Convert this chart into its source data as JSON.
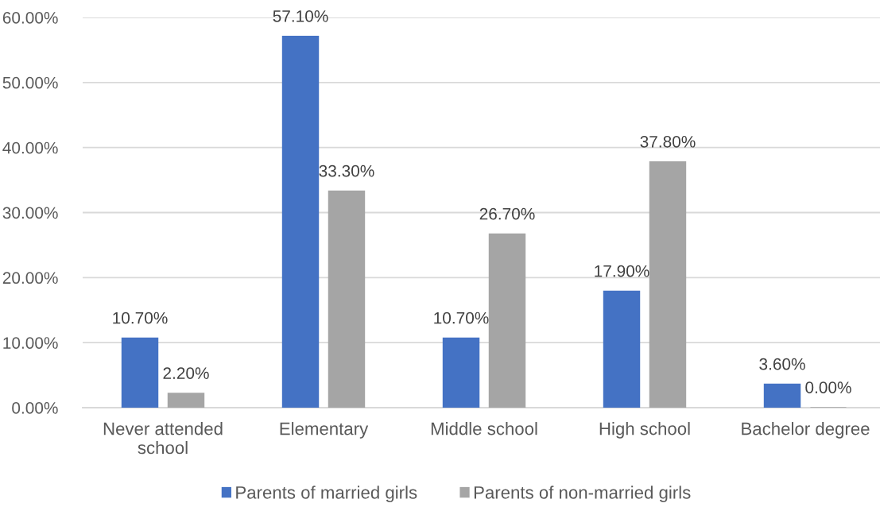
{
  "chart_data": {
    "type": "bar",
    "categories": [
      "Never attended school",
      "Elementary",
      "Middle school",
      "High school",
      "Bachelor degree"
    ],
    "series": [
      {
        "name": "Parents of married girls",
        "color": "#4472c4",
        "values": [
          10.7,
          57.1,
          10.7,
          17.9,
          3.6
        ],
        "value_labels": [
          "10.70%",
          "57.10%",
          "10.70%",
          "17.90%",
          "3.60%"
        ]
      },
      {
        "name": "Parents of non-married girls",
        "color": "#a5a5a5",
        "values": [
          2.2,
          33.3,
          26.7,
          37.8,
          0.0
        ],
        "value_labels": [
          "2.20%",
          "33.30%",
          "26.70%",
          "37.80%",
          "0.00%"
        ]
      }
    ],
    "ylim": [
      0,
      60
    ],
    "yticks": [
      {
        "value": 0,
        "label": "0.00%"
      },
      {
        "value": 10,
        "label": "10.00%"
      },
      {
        "value": 20,
        "label": "20.00%"
      },
      {
        "value": 30,
        "label": "30.00%"
      },
      {
        "value": 40,
        "label": "40.00%"
      },
      {
        "value": 50,
        "label": "50.00%"
      },
      {
        "value": 60,
        "label": "60.00%"
      }
    ],
    "grid": "y",
    "legend": "bottom"
  }
}
